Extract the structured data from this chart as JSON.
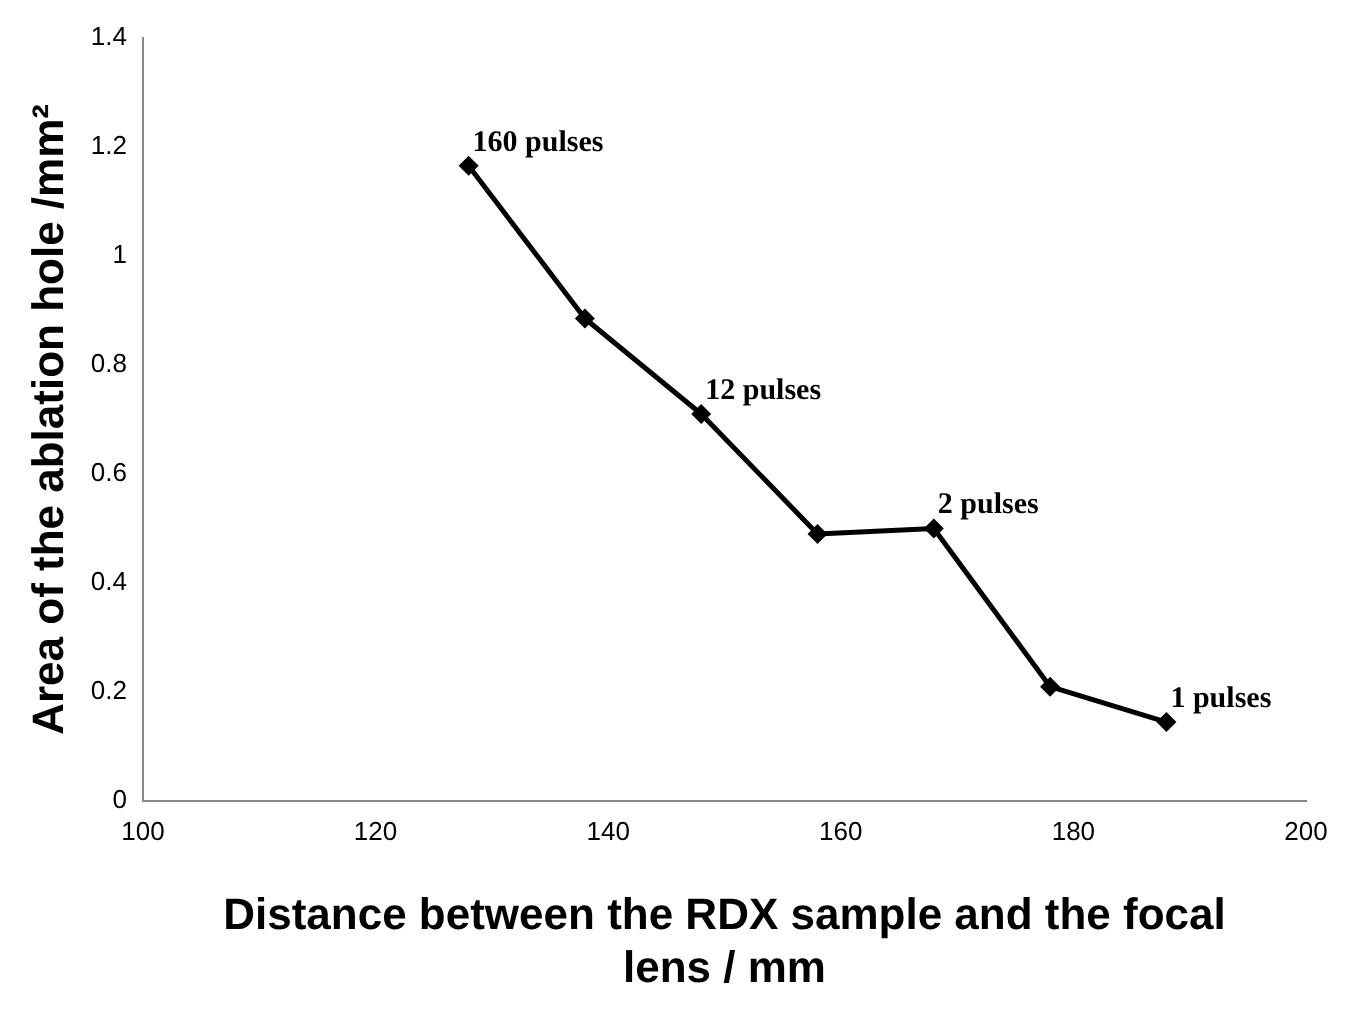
{
  "chart_data": {
    "type": "line",
    "xlabel": "Distance between the RDX sample and the focal lens / mm",
    "ylabel": "Area of the ablation hole /mm²",
    "x": [
      128,
      138,
      148,
      158,
      168,
      178,
      188
    ],
    "series": [
      {
        "color": "#000000",
        "values": [
          1.165,
          0.885,
          0.71,
          0.49,
          0.5,
          0.21,
          0.145
        ]
      }
    ],
    "xlim": [
      100,
      200
    ],
    "xticks": [
      100,
      120,
      140,
      160,
      180,
      200
    ],
    "ylim": [
      0,
      1.4
    ],
    "yticks": [
      0,
      0.2,
      0.4,
      0.6,
      0.8,
      1,
      1.2,
      1.4
    ],
    "grid": false,
    "legend": false,
    "marker": "diamond",
    "line_style": "solid",
    "annotations": [
      {
        "text": "160 pulses",
        "x": 128,
        "y": 1.165
      },
      {
        "text": "12 pulses",
        "x": 148,
        "y": 0.71
      },
      {
        "text": "2 pulses",
        "x": 168,
        "y": 0.5
      },
      {
        "text": "1 pulses",
        "x": 188,
        "y": 0.145
      }
    ]
  }
}
